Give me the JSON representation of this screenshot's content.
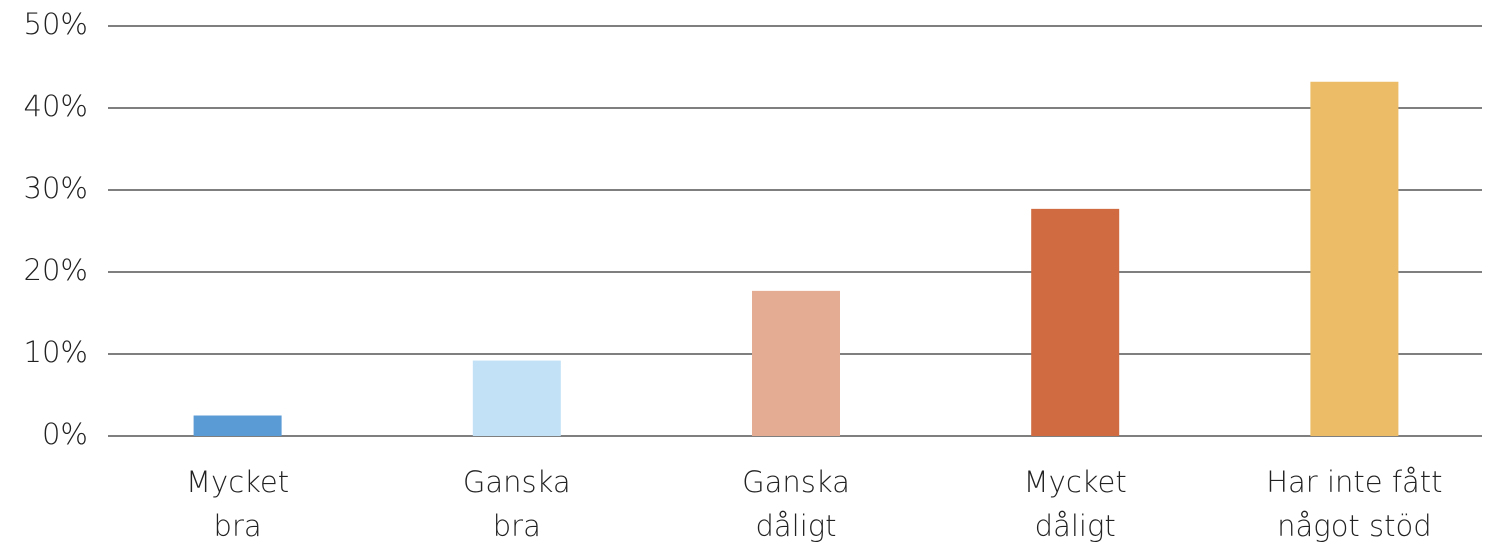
{
  "chart_data": {
    "type": "bar",
    "categories": [
      [
        "Mycket",
        "bra"
      ],
      [
        "Ganska",
        "bra"
      ],
      [
        "Ganska",
        "dåligt"
      ],
      [
        "Mycket",
        "dåligt"
      ],
      [
        "Har inte fått",
        "något stöd"
      ]
    ],
    "values": [
      2.5,
      9.2,
      17.7,
      27.7,
      43.2
    ],
    "colors": [
      "#5b9bd5",
      "#c2e1f7",
      "#e4ac93",
      "#d06a40",
      "#ecbd66"
    ],
    "ylim": [
      0,
      50
    ],
    "yticks": [
      {
        "value": 0,
        "label": "0%"
      },
      {
        "value": 10,
        "label": "10%"
      },
      {
        "value": 20,
        "label": "20%"
      },
      {
        "value": 30,
        "label": "30%"
      },
      {
        "value": 40,
        "label": "40%"
      },
      {
        "value": 50,
        "label": "50%"
      }
    ],
    "grid": true
  }
}
